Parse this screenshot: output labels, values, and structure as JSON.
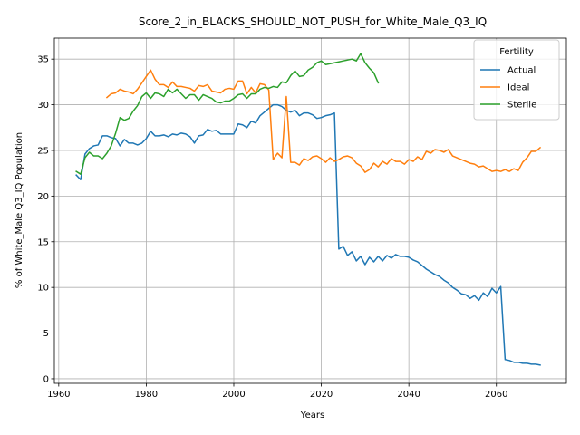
{
  "chart_data": {
    "type": "line",
    "title": "Score_2_in_BLACKS_SHOULD_NOT_PUSH_for_White_Male_Q3_IQ",
    "xlabel": "Years",
    "ylabel": "% of White_Male Q3_IQ Population",
    "xlim": [
      1959,
      2076
    ],
    "ylim": [
      -0.5,
      37.3
    ],
    "xticks": [
      1960,
      1980,
      2000,
      2020,
      2040,
      2060
    ],
    "yticks": [
      0,
      5,
      10,
      15,
      20,
      25,
      30,
      35
    ],
    "grid": true,
    "legend": {
      "title": "Fertility",
      "placement": "top-right"
    },
    "series": [
      {
        "name": "Actual",
        "color": "#1f77b4",
        "points": [
          [
            1964,
            22.3
          ],
          [
            1965,
            21.8
          ],
          [
            1966,
            24.6
          ],
          [
            1967,
            25.2
          ],
          [
            1968,
            25.5
          ],
          [
            1969,
            25.6
          ],
          [
            1970,
            26.6
          ],
          [
            1971,
            26.6
          ],
          [
            1972,
            26.4
          ],
          [
            1973,
            26.3
          ],
          [
            1974,
            25.5
          ],
          [
            1975,
            26.2
          ],
          [
            1976,
            25.8
          ],
          [
            1977,
            25.8
          ],
          [
            1978,
            25.6
          ],
          [
            1979,
            25.8
          ],
          [
            1980,
            26.3
          ],
          [
            1981,
            27.1
          ],
          [
            1982,
            26.6
          ],
          [
            1983,
            26.6
          ],
          [
            1984,
            26.7
          ],
          [
            1985,
            26.5
          ],
          [
            1986,
            26.8
          ],
          [
            1987,
            26.7
          ],
          [
            1988,
            26.9
          ],
          [
            1989,
            26.8
          ],
          [
            1990,
            26.5
          ],
          [
            1991,
            25.8
          ],
          [
            1992,
            26.6
          ],
          [
            1993,
            26.7
          ],
          [
            1994,
            27.3
          ],
          [
            1995,
            27.1
          ],
          [
            1996,
            27.2
          ],
          [
            1997,
            26.8
          ],
          [
            1998,
            26.8
          ],
          [
            1999,
            26.8
          ],
          [
            2000,
            26.8
          ],
          [
            2001,
            27.9
          ],
          [
            2002,
            27.8
          ],
          [
            2003,
            27.5
          ],
          [
            2004,
            28.2
          ],
          [
            2005,
            28.0
          ],
          [
            2006,
            28.8
          ],
          [
            2007,
            29.2
          ],
          [
            2008,
            29.6
          ],
          [
            2009,
            30.0
          ],
          [
            2010,
            30.0
          ],
          [
            2011,
            29.8
          ],
          [
            2012,
            29.4
          ],
          [
            2013,
            29.2
          ],
          [
            2014,
            29.4
          ],
          [
            2015,
            28.8
          ],
          [
            2016,
            29.1
          ],
          [
            2017,
            29.1
          ],
          [
            2018,
            28.9
          ],
          [
            2019,
            28.5
          ],
          [
            2020,
            28.6
          ],
          [
            2021,
            28.8
          ],
          [
            2022,
            28.9
          ],
          [
            2023,
            29.1
          ],
          [
            2024,
            14.2
          ],
          [
            2025,
            14.5
          ],
          [
            2026,
            13.5
          ],
          [
            2027,
            13.9
          ],
          [
            2028,
            12.9
          ],
          [
            2029,
            13.4
          ],
          [
            2030,
            12.5
          ],
          [
            2031,
            13.3
          ],
          [
            2032,
            12.8
          ],
          [
            2033,
            13.4
          ],
          [
            2034,
            12.9
          ],
          [
            2035,
            13.5
          ],
          [
            2036,
            13.2
          ],
          [
            2037,
            13.6
          ],
          [
            2038,
            13.4
          ],
          [
            2039,
            13.4
          ],
          [
            2040,
            13.3
          ],
          [
            2041,
            13.0
          ],
          [
            2042,
            12.8
          ],
          [
            2043,
            12.4
          ],
          [
            2044,
            12.0
          ],
          [
            2045,
            11.7
          ],
          [
            2046,
            11.4
          ],
          [
            2047,
            11.2
          ],
          [
            2048,
            10.8
          ],
          [
            2049,
            10.5
          ],
          [
            2050,
            10.0
          ],
          [
            2051,
            9.7
          ],
          [
            2052,
            9.3
          ],
          [
            2053,
            9.2
          ],
          [
            2054,
            8.8
          ],
          [
            2055,
            9.1
          ],
          [
            2056,
            8.6
          ],
          [
            2057,
            9.4
          ],
          [
            2058,
            9.0
          ],
          [
            2059,
            9.9
          ],
          [
            2060,
            9.4
          ],
          [
            2061,
            10.1
          ],
          [
            2062,
            2.1
          ],
          [
            2063,
            2.0
          ],
          [
            2064,
            1.8
          ],
          [
            2065,
            1.8
          ],
          [
            2066,
            1.7
          ],
          [
            2067,
            1.7
          ],
          [
            2068,
            1.6
          ],
          [
            2069,
            1.6
          ],
          [
            2070,
            1.5
          ]
        ]
      },
      {
        "name": "Ideal",
        "color": "#ff7f0e",
        "points": [
          [
            1971,
            30.8
          ],
          [
            1972,
            31.2
          ],
          [
            1973,
            31.3
          ],
          [
            1974,
            31.7
          ],
          [
            1975,
            31.5
          ],
          [
            1976,
            31.4
          ],
          [
            1977,
            31.2
          ],
          [
            1978,
            31.7
          ],
          [
            1979,
            32.4
          ],
          [
            1980,
            33.1
          ],
          [
            1981,
            33.8
          ],
          [
            1982,
            32.8
          ],
          [
            1983,
            32.2
          ],
          [
            1984,
            32.2
          ],
          [
            1985,
            31.9
          ],
          [
            1986,
            32.5
          ],
          [
            1987,
            32.0
          ],
          [
            1988,
            32.0
          ],
          [
            1989,
            31.9
          ],
          [
            1990,
            31.8
          ],
          [
            1991,
            31.5
          ],
          [
            1992,
            32.1
          ],
          [
            1993,
            32.0
          ],
          [
            1994,
            32.2
          ],
          [
            1995,
            31.5
          ],
          [
            1996,
            31.4
          ],
          [
            1997,
            31.3
          ],
          [
            1998,
            31.7
          ],
          [
            1999,
            31.8
          ],
          [
            2000,
            31.7
          ],
          [
            2001,
            32.6
          ],
          [
            2002,
            32.6
          ],
          [
            2003,
            31.2
          ],
          [
            2004,
            31.9
          ],
          [
            2005,
            31.3
          ],
          [
            2006,
            32.3
          ],
          [
            2007,
            32.2
          ],
          [
            2008,
            31.6
          ],
          [
            2009,
            24.0
          ],
          [
            2010,
            24.7
          ],
          [
            2011,
            24.2
          ],
          [
            2012,
            30.9
          ],
          [
            2013,
            23.7
          ],
          [
            2014,
            23.7
          ],
          [
            2015,
            23.4
          ],
          [
            2016,
            24.1
          ],
          [
            2017,
            23.9
          ],
          [
            2018,
            24.3
          ],
          [
            2019,
            24.4
          ],
          [
            2020,
            24.1
          ],
          [
            2021,
            23.7
          ],
          [
            2022,
            24.2
          ],
          [
            2023,
            23.8
          ],
          [
            2024,
            24.0
          ],
          [
            2025,
            24.3
          ],
          [
            2026,
            24.4
          ],
          [
            2027,
            24.2
          ],
          [
            2028,
            23.6
          ],
          [
            2029,
            23.3
          ],
          [
            2030,
            22.6
          ],
          [
            2031,
            22.9
          ],
          [
            2032,
            23.6
          ],
          [
            2033,
            23.2
          ],
          [
            2034,
            23.8
          ],
          [
            2035,
            23.5
          ],
          [
            2036,
            24.1
          ],
          [
            2037,
            23.8
          ],
          [
            2038,
            23.8
          ],
          [
            2039,
            23.5
          ],
          [
            2040,
            24.0
          ],
          [
            2041,
            23.8
          ],
          [
            2042,
            24.3
          ],
          [
            2043,
            24.0
          ],
          [
            2044,
            24.9
          ],
          [
            2045,
            24.7
          ],
          [
            2046,
            25.1
          ],
          [
            2047,
            25.0
          ],
          [
            2048,
            24.8
          ],
          [
            2049,
            25.1
          ],
          [
            2050,
            24.4
          ],
          [
            2051,
            24.2
          ],
          [
            2052,
            24.0
          ],
          [
            2053,
            23.8
          ],
          [
            2054,
            23.6
          ],
          [
            2055,
            23.5
          ],
          [
            2056,
            23.2
          ],
          [
            2057,
            23.3
          ],
          [
            2058,
            23.0
          ],
          [
            2059,
            22.7
          ],
          [
            2060,
            22.8
          ],
          [
            2061,
            22.7
          ],
          [
            2062,
            22.9
          ],
          [
            2063,
            22.7
          ],
          [
            2064,
            23.0
          ],
          [
            2065,
            22.8
          ],
          [
            2066,
            23.7
          ],
          [
            2067,
            24.2
          ],
          [
            2068,
            24.9
          ],
          [
            2069,
            24.9
          ],
          [
            2070,
            25.3
          ]
        ]
      },
      {
        "name": "Sterile",
        "color": "#2ca02c",
        "points": [
          [
            1964,
            22.7
          ],
          [
            1965,
            22.4
          ],
          [
            1966,
            24.2
          ],
          [
            1967,
            24.8
          ],
          [
            1968,
            24.4
          ],
          [
            1969,
            24.4
          ],
          [
            1970,
            24.1
          ],
          [
            1971,
            24.7
          ],
          [
            1972,
            25.5
          ],
          [
            1973,
            26.9
          ],
          [
            1974,
            28.6
          ],
          [
            1975,
            28.3
          ],
          [
            1976,
            28.5
          ],
          [
            1977,
            29.3
          ],
          [
            1978,
            29.9
          ],
          [
            1979,
            30.9
          ],
          [
            1980,
            31.3
          ],
          [
            1981,
            30.7
          ],
          [
            1982,
            31.3
          ],
          [
            1983,
            31.2
          ],
          [
            1984,
            30.9
          ],
          [
            1985,
            31.7
          ],
          [
            1986,
            31.3
          ],
          [
            1987,
            31.7
          ],
          [
            1988,
            31.2
          ],
          [
            1989,
            30.7
          ],
          [
            1990,
            31.1
          ],
          [
            1991,
            31.1
          ],
          [
            1992,
            30.5
          ],
          [
            1993,
            31.1
          ],
          [
            1994,
            30.9
          ],
          [
            1995,
            30.7
          ],
          [
            1996,
            30.3
          ],
          [
            1997,
            30.2
          ],
          [
            1998,
            30.4
          ],
          [
            1999,
            30.4
          ],
          [
            2000,
            30.7
          ],
          [
            2001,
            31.1
          ],
          [
            2002,
            31.2
          ],
          [
            2003,
            30.7
          ],
          [
            2004,
            31.2
          ],
          [
            2005,
            31.2
          ],
          [
            2006,
            31.7
          ],
          [
            2007,
            31.9
          ],
          [
            2008,
            31.8
          ],
          [
            2009,
            32.0
          ],
          [
            2010,
            31.9
          ],
          [
            2011,
            32.5
          ],
          [
            2012,
            32.4
          ],
          [
            2013,
            33.2
          ],
          [
            2014,
            33.7
          ],
          [
            2015,
            33.1
          ],
          [
            2016,
            33.2
          ],
          [
            2017,
            33.8
          ],
          [
            2018,
            34.1
          ],
          [
            2019,
            34.6
          ],
          [
            2020,
            34.8
          ],
          [
            2021,
            34.4
          ],
          [
            2022,
            34.5
          ],
          [
            2023,
            34.6
          ],
          [
            2024,
            34.7
          ],
          [
            2025,
            34.8
          ],
          [
            2026,
            34.9
          ],
          [
            2027,
            35.0
          ],
          [
            2028,
            34.8
          ],
          [
            2029,
            35.6
          ],
          [
            2030,
            34.6
          ],
          [
            2031,
            34.0
          ],
          [
            2032,
            33.5
          ],
          [
            2033,
            32.4
          ]
        ]
      }
    ]
  }
}
